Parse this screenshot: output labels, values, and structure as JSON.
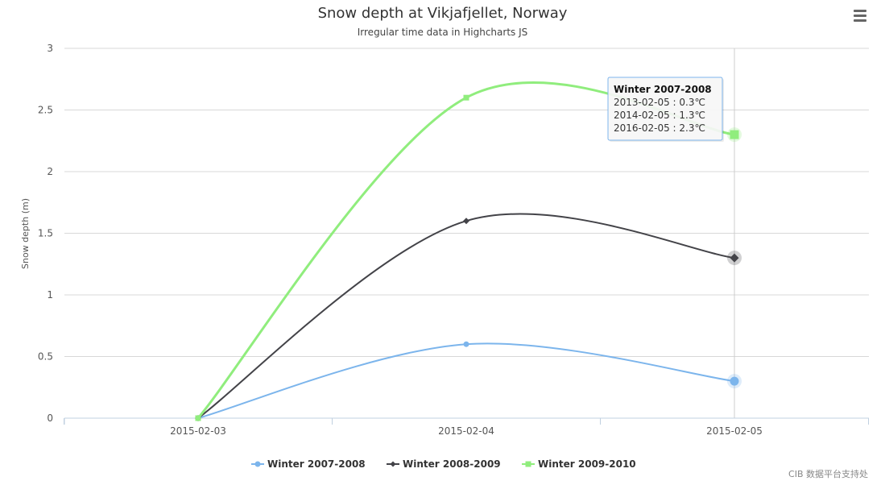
{
  "chart_data": {
    "type": "line",
    "title": "Snow depth at Vikjafjellet, Norway",
    "subtitle": "Irregular time data in Highcharts JS",
    "ylabel": "Snow depth (m)",
    "xlabel": "",
    "ylim": [
      0,
      3
    ],
    "yticks": [
      "0",
      "0.5",
      "1",
      "1.5",
      "2",
      "2.5",
      "3"
    ],
    "x": [
      "2015-02-03",
      "2015-02-04",
      "2015-02-05"
    ],
    "series": [
      {
        "name": "Winter 2007-2008",
        "values": [
          0,
          0.6,
          0.3
        ],
        "color": "#7cb5ec",
        "marker": "circle"
      },
      {
        "name": "Winter 2008-2009",
        "values": [
          0,
          1.6,
          1.3
        ],
        "color": "#434348",
        "marker": "diamond"
      },
      {
        "name": "Winter 2009-2010",
        "values": [
          0,
          2.6,
          2.3
        ],
        "color": "#90ed7d",
        "marker": "square"
      }
    ],
    "grid": true,
    "legend_position": "bottom-center",
    "tooltip": {
      "header": "Winter 2007-2008",
      "lines": [
        "2013-02-05 : 0.3℃",
        "2014-02-05 : 1.3℃",
        "2016-02-05 : 2.3℃"
      ],
      "hover_index": 2
    }
  },
  "menu_icon": "hamburger-menu-icon",
  "credit": "CIB 数据平台支持处"
}
